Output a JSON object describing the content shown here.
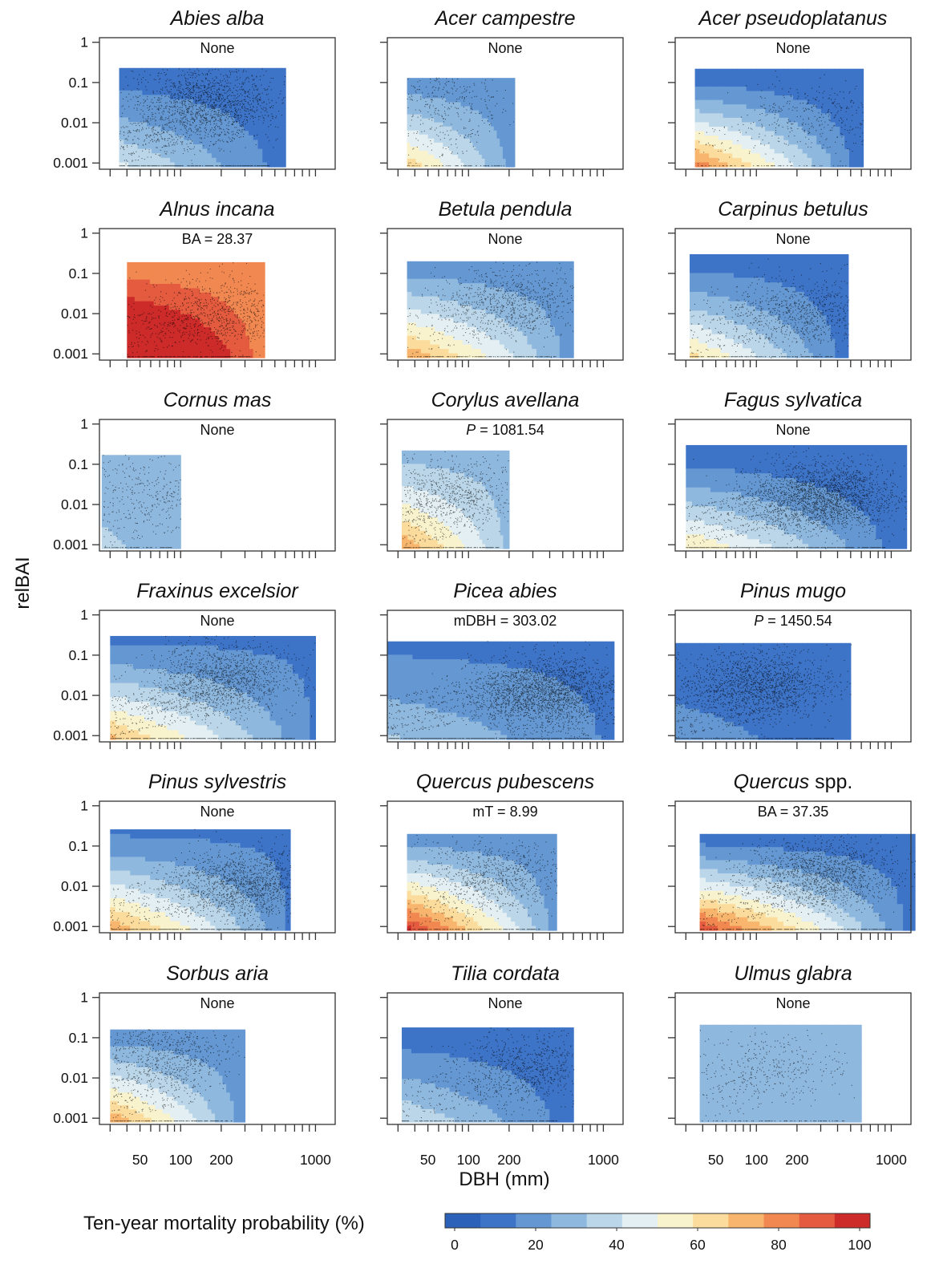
{
  "chart_data": {
    "type": "heatmap",
    "layout": "small-multiples 6 rows x 3 columns",
    "xlabel": "DBH (mm)",
    "ylabel": "relBAI",
    "x_scale": "log",
    "y_scale": "log",
    "xlim": [
      25,
      1400
    ],
    "ylim": [
      0.0007,
      1.3
    ],
    "x_tick_labels": [
      "50",
      "100",
      "200",
      "1000"
    ],
    "y_tick_labels": [
      "1",
      "0.1",
      "0.01",
      "0.001"
    ],
    "y_ticks": [
      1,
      0.1,
      0.01,
      0.001
    ],
    "legend": {
      "title": "Ten-year mortality probability (%)",
      "range": [
        0,
        100
      ],
      "tick_labels": [
        "0",
        "20",
        "40",
        "60",
        "80",
        "100"
      ],
      "colors": [
        "#2c61b9",
        "#3e74c7",
        "#6598d2",
        "#8fb8de",
        "#bbd6e8",
        "#e3eff3",
        "#f8f2cd",
        "#fbdc9c",
        "#f8b56e",
        "#f18851",
        "#e45b3f",
        "#cd2a2a"
      ]
    },
    "panels": [
      {
        "species": "Abies alba",
        "annotation": "None",
        "dbh_range": [
          35,
          600
        ],
        "relbai_max": 0.23,
        "base": 12,
        "gradient": 32,
        "cloud": [
          150,
          0.03
        ],
        "density": "high"
      },
      {
        "species": "Acer campestre",
        "annotation": "None",
        "dbh_range": [
          35,
          220
        ],
        "relbai_max": 0.13,
        "base": 20,
        "gradient": 45,
        "cloud": [
          60,
          0.04
        ],
        "density": "low"
      },
      {
        "species": "Acer pseudoplatanus",
        "annotation": "None",
        "dbh_range": [
          35,
          620
        ],
        "relbai_max": 0.22,
        "base": 10,
        "gradient": 72,
        "cloud": [
          280,
          0.015
        ],
        "density": "low"
      },
      {
        "species": "Alnus incana",
        "annotation": "BA = 28.37",
        "dbh_range": [
          40,
          420
        ],
        "relbai_max": 0.19,
        "base": 78,
        "gradient": 50,
        "cloud": [
          180,
          0.01
        ],
        "density": "medium"
      },
      {
        "species": "Betula pendula",
        "annotation": "None",
        "dbh_range": [
          35,
          600
        ],
        "relbai_max": 0.2,
        "base": 20,
        "gradient": 55,
        "cloud": [
          200,
          0.02
        ],
        "density": "medium"
      },
      {
        "species": "Carpinus betulus",
        "annotation": "None",
        "dbh_range": [
          32,
          480
        ],
        "relbai_max": 0.3,
        "base": 12,
        "gradient": 50,
        "cloud": [
          200,
          0.01
        ],
        "density": "medium"
      },
      {
        "species": "Cornus mas",
        "annotation": "None",
        "dbh_range": [
          26,
          100
        ],
        "relbai_max": 0.17,
        "base": 25,
        "gradient": 12,
        "cloud": [
          55,
          0.03
        ],
        "density": "low"
      },
      {
        "species": "Corylus avellana",
        "annotation": "P = 1081.54",
        "dbh_range": [
          32,
          200
        ],
        "relbai_max": 0.22,
        "base": 30,
        "gradient": 45,
        "cloud": [
          70,
          0.02
        ],
        "density": "medium"
      },
      {
        "species": "Fagus sylvatica",
        "annotation": "None",
        "dbh_range": [
          30,
          1300
        ],
        "relbai_max": 0.3,
        "base": 10,
        "gradient": 50,
        "cloud": [
          300,
          0.015
        ],
        "density": "very-high"
      },
      {
        "species": "Fraxinus excelsior",
        "annotation": "None",
        "dbh_range": [
          30,
          1000
        ],
        "relbai_max": 0.3,
        "base": 15,
        "gradient": 55,
        "cloud": [
          200,
          0.025
        ],
        "density": "high"
      },
      {
        "species": "Picea abies",
        "annotation": "mDBH = 303.02",
        "dbh_range": [
          25,
          1200
        ],
        "relbai_max": 0.22,
        "base": 15,
        "gradient": 20,
        "cloud": [
          380,
          0.01
        ],
        "density": "very-high"
      },
      {
        "species": "Pinus mugo",
        "annotation": "P = 1450.54",
        "dbh_range": [
          25,
          500
        ],
        "relbai_max": 0.2,
        "base": 10,
        "gradient": 12,
        "cloud": [
          100,
          0.02
        ],
        "density": "high"
      },
      {
        "species": "Pinus sylvestris",
        "annotation": "None",
        "dbh_range": [
          30,
          650
        ],
        "relbai_max": 0.26,
        "base": 15,
        "gradient": 60,
        "cloud": [
          300,
          0.01
        ],
        "density": "high"
      },
      {
        "species": "Quercus pubescens",
        "annotation": "mT = 8.99",
        "dbh_range": [
          35,
          450
        ],
        "relbai_max": 0.2,
        "base": 20,
        "gradient": 75,
        "cloud": [
          160,
          0.02
        ],
        "density": "medium"
      },
      {
        "species": "Quercus spp.",
        "annotation": "BA = 37.35",
        "dbh_range": [
          38,
          1500
        ],
        "relbai_max": 0.2,
        "base": 12,
        "gradient": 80,
        "cloud": [
          300,
          0.02
        ],
        "density": "high"
      },
      {
        "species": "Sorbus aria",
        "annotation": "None",
        "dbh_range": [
          30,
          300
        ],
        "relbai_max": 0.16,
        "base": 20,
        "gradient": 55,
        "cloud": [
          70,
          0.04
        ],
        "density": "medium"
      },
      {
        "species": "Tilia cordata",
        "annotation": "None",
        "dbh_range": [
          32,
          600
        ],
        "relbai_max": 0.18,
        "base": 12,
        "gradient": 30,
        "cloud": [
          250,
          0.015
        ],
        "density": "medium"
      },
      {
        "species": "Ulmus glabra",
        "annotation": "None",
        "dbh_range": [
          38,
          600
        ],
        "relbai_max": 0.21,
        "base": 25,
        "gradient": 3,
        "cloud": [
          130,
          0.02
        ],
        "density": "low"
      }
    ]
  }
}
